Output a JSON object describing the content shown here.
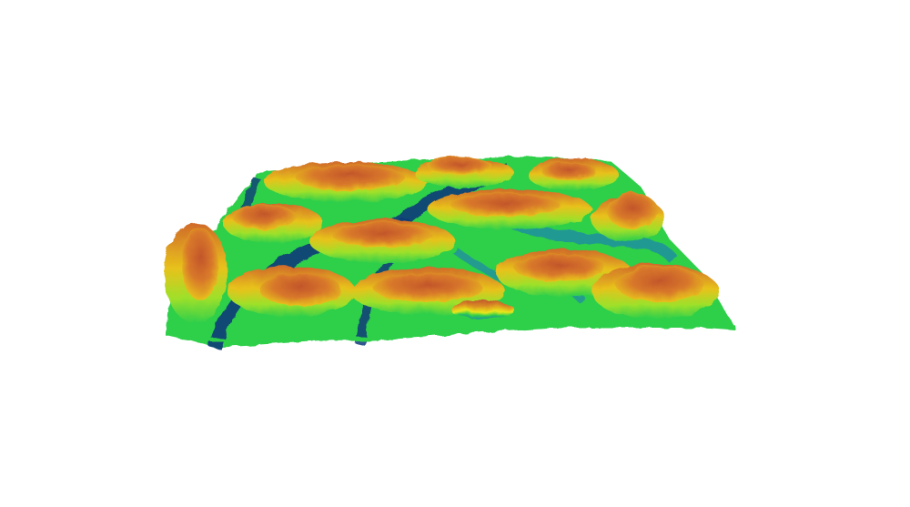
{
  "scene": {
    "background": "#ffffff",
    "subject": "terrain-surface",
    "palette": {
      "deep": "#0d3b7a",
      "teal": "#1f8fa0",
      "green": "#2fcf4a",
      "yellow": "#e8e81a",
      "orange": "#e0a020",
      "peak": "#c2552c"
    }
  }
}
